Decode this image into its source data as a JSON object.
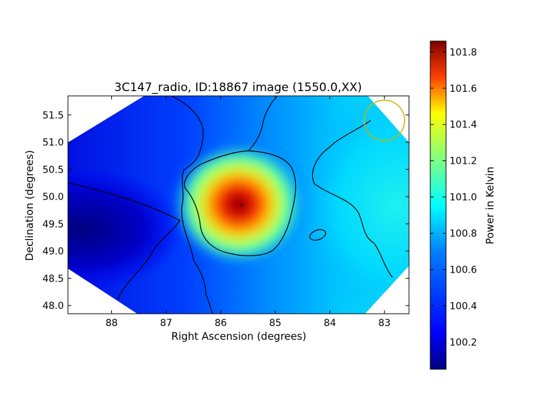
{
  "chart_data": {
    "type": "heatmap",
    "title": "3C147_radio, ID:18867 image (1550.0,XX)",
    "xlabel": "Right Ascension (degrees)",
    "ylabel": "Declination (degrees)",
    "xlim": [
      88.8,
      82.55
    ],
    "ylim": [
      47.85,
      51.85
    ],
    "x_ticks": [
      88,
      87,
      86,
      85,
      84,
      83
    ],
    "y_ticks": [
      48.0,
      48.5,
      49.0,
      49.5,
      50.0,
      50.5,
      51.0,
      51.5
    ],
    "x_tick_labels": [
      "88",
      "87",
      "86",
      "85",
      "84",
      "83"
    ],
    "y_tick_labels": [
      "48.0",
      "48.5",
      "49.0",
      "49.5",
      "50.0",
      "50.5",
      "51.0",
      "51.5"
    ],
    "colormap": "jet",
    "colorbar": {
      "label": "Power in Kelvin",
      "range": [
        100.05,
        101.86
      ],
      "ticks": [
        100.2,
        100.4,
        100.6,
        100.8,
        101.0,
        101.2,
        101.4,
        101.6,
        101.8
      ],
      "tick_labels": [
        "100.2",
        "100.4",
        "100.6",
        "100.8",
        "101.0",
        "101.2",
        "101.4",
        "101.6",
        "101.8"
      ]
    },
    "peak": {
      "ra": 85.62,
      "dec": 49.85,
      "value": 101.86
    },
    "secondary_peak": {
      "ra": 84.2,
      "dec": 49.3,
      "value": 100.45
    },
    "background_low": {
      "ra": 88.5,
      "dec": 49.3,
      "value": 100.05
    },
    "background_high": {
      "ra": 82.8,
      "dec": 49.6,
      "value": 100.72
    },
    "beam_marker": {
      "ra": 83.0,
      "dec": 51.4,
      "radius_deg": 0.37,
      "color": "#c8b400"
    },
    "contour_levels": 12,
    "contour_color": "#000000"
  }
}
